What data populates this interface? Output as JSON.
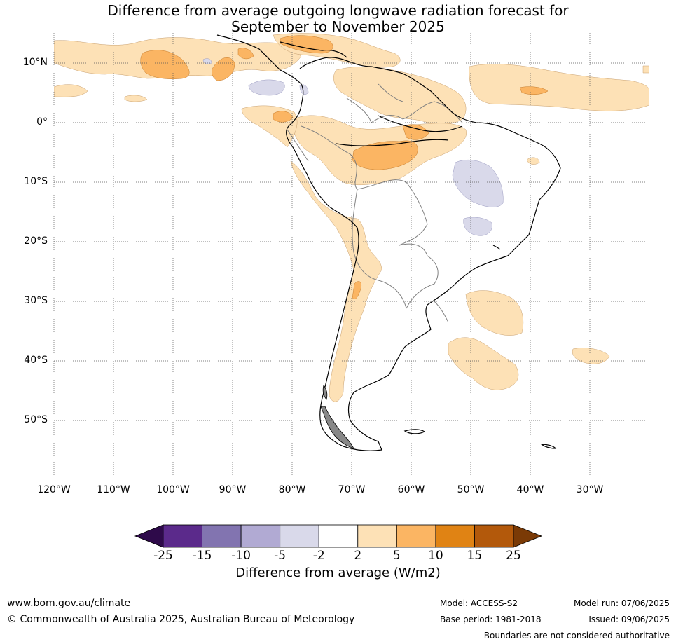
{
  "title": {
    "line1": "Difference from average outgoing longwave radiation forecast for",
    "line2": "September to November 2025"
  },
  "map": {
    "lat_labels": [
      "10°N",
      "0°",
      "10°S",
      "20°S",
      "30°S",
      "40°S",
      "50°S"
    ],
    "lon_labels": [
      "120°W",
      "110°W",
      "100°W",
      "90°W",
      "80°W",
      "70°W",
      "60°W",
      "50°W",
      "40°W",
      "30°W"
    ],
    "extent": {
      "lon": [
        -120,
        -20
      ],
      "lat": [
        -60,
        15
      ]
    },
    "gridlines": true
  },
  "colorbar": {
    "ticks": [
      "-25",
      "-15",
      "-10",
      "-5",
      "-2",
      "2",
      "5",
      "10",
      "15",
      "25"
    ],
    "colors": [
      "#2e0a4a",
      "#5b2a8b",
      "#8274b0",
      "#b1aad3",
      "#d9d9ea",
      "#ffffff",
      "#fde1b6",
      "#fbb563",
      "#e08314",
      "#b3590b",
      "#7a3a06"
    ],
    "label": "Difference from average (W/m2)"
  },
  "footer": {
    "website": "www.bom.gov.au/climate",
    "copyright": "© Commonwealth of Australia 2025, Australian Bureau of Meteorology",
    "model": "Model: ACCESS-S2",
    "base_period": "Base period: 1981-2018",
    "model_run": "Model run: 07/06/2025",
    "issued": "Issued: 09/06/2025",
    "disclaimer": "Boundaries are not considered authoritative"
  }
}
